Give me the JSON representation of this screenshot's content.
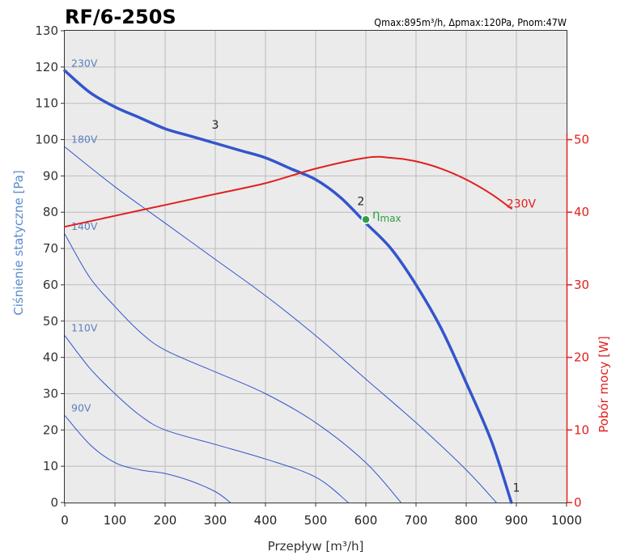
{
  "chart_data": {
    "type": "line",
    "title": "RF/6-250S",
    "spec": "Qmax:895m³/h, Δpmax:120Pa, Pnom:47W",
    "xlabel": "Przepływ [m³/h]",
    "ylabel": "Ciśnienie statyczne [Pa]",
    "y2label": "Pobór mocy [W]",
    "xlim": [
      0,
      1000
    ],
    "ylim": [
      0,
      130
    ],
    "y2lim": [
      0,
      65
    ],
    "grid": true,
    "x_ticks": [
      "0",
      "100",
      "200",
      "300",
      "400",
      "500",
      "600",
      "700",
      "800",
      "900",
      "1000"
    ],
    "y_ticks": [
      "0",
      "10",
      "20",
      "30",
      "40",
      "50",
      "60",
      "70",
      "80",
      "90",
      "100",
      "110",
      "120",
      "130"
    ],
    "y2_ticks": [
      "0",
      "10",
      "20",
      "30",
      "40",
      "50"
    ],
    "series": [
      {
        "name": "230V",
        "label": "230V",
        "axis": "left",
        "bold": true,
        "x": [
          0,
          50,
          100,
          150,
          200,
          250,
          300,
          350,
          400,
          450,
          500,
          550,
          600,
          650,
          700,
          750,
          800,
          850,
          890
        ],
        "y": [
          119,
          113,
          109,
          106,
          103,
          101,
          99,
          97,
          95,
          92,
          89,
          84,
          77,
          70,
          60,
          48,
          33,
          17,
          0
        ]
      },
      {
        "name": "180V",
        "label": "180V",
        "axis": "left",
        "bold": false,
        "x": [
          0,
          100,
          200,
          300,
          400,
          500,
          600,
          700,
          800,
          860
        ],
        "y": [
          98,
          87,
          77,
          67,
          57,
          46,
          34,
          22,
          9,
          0
        ]
      },
      {
        "name": "140V",
        "label": "140V",
        "axis": "left",
        "bold": false,
        "x": [
          0,
          50,
          100,
          150,
          200,
          300,
          400,
          500,
          600,
          670
        ],
        "y": [
          74,
          62,
          54,
          47,
          42,
          36,
          30,
          22,
          11,
          0
        ]
      },
      {
        "name": "110V",
        "label": "110V",
        "axis": "left",
        "bold": false,
        "x": [
          0,
          50,
          100,
          150,
          200,
          300,
          400,
          500,
          565
        ],
        "y": [
          46,
          37,
          30,
          24,
          20,
          16,
          12,
          7,
          0
        ]
      },
      {
        "name": "90V",
        "label": "90V",
        "axis": "left",
        "bold": false,
        "x": [
          0,
          50,
          100,
          150,
          200,
          250,
          300,
          330
        ],
        "y": [
          24,
          16,
          11,
          9,
          8,
          6,
          3,
          0
        ]
      },
      {
        "name": "Power 230V",
        "label": "230V",
        "axis": "right",
        "bold": false,
        "x": [
          0,
          100,
          200,
          300,
          400,
          500,
          600,
          650,
          700,
          750,
          800,
          850,
          890
        ],
        "y": [
          38,
          39.5,
          41,
          42.5,
          44,
          46,
          47.5,
          47.5,
          47,
          46,
          44.5,
          42.5,
          40.5
        ]
      }
    ],
    "annotations": [
      {
        "text": "1",
        "x": 900,
        "y": 3
      },
      {
        "text": "2",
        "x": 590,
        "y": 82
      },
      {
        "text": "3",
        "x": 300,
        "y": 103
      },
      {
        "text": "ηmax",
        "x": 600,
        "y": 78
      }
    ],
    "eta_marker": {
      "x": 600,
      "y": 78,
      "color": "#2ea043"
    },
    "colors": {
      "pressure": "#3355cc",
      "power": "#e0201e",
      "eta": "#2ea043",
      "grid": "#bbbbbb"
    }
  }
}
